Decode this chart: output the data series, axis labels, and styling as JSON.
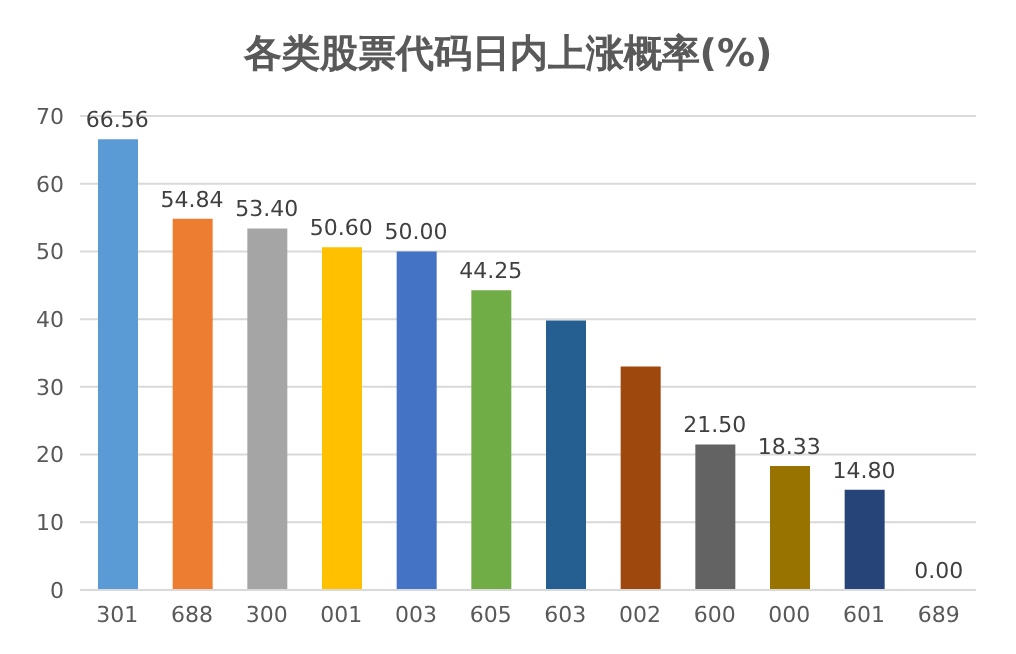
{
  "chart_data": {
    "type": "bar",
    "title": "各类股票代码日内上涨概率(%)",
    "categories": [
      "301",
      "688",
      "300",
      "001",
      "003",
      "605",
      "603",
      "002",
      "600",
      "000",
      "601",
      "689"
    ],
    "values": [
      66.56,
      54.84,
      53.4,
      50.6,
      50.0,
      44.25,
      39.8,
      33,
      21.5,
      18.33,
      14.8,
      0.0
    ],
    "colors": [
      "#5b9bd5",
      "#ed7d31",
      "#a5a5a5",
      "#ffc000",
      "#4472c4",
      "#70ad47",
      "#255e91",
      "#9e480e",
      "#636363",
      "#997300",
      "#264478",
      "#43682b"
    ],
    "value_labels": [
      "66.56",
      "54.84",
      "53.40",
      "50.60",
      "50.00",
      "44.25",
      null,
      null,
      "21.50",
      "18.33",
      "14.80",
      "0.00"
    ],
    "ylim": [
      0,
      70
    ],
    "yticks": [
      0,
      10,
      20,
      30,
      40,
      50,
      60,
      70
    ],
    "grid": "y"
  }
}
